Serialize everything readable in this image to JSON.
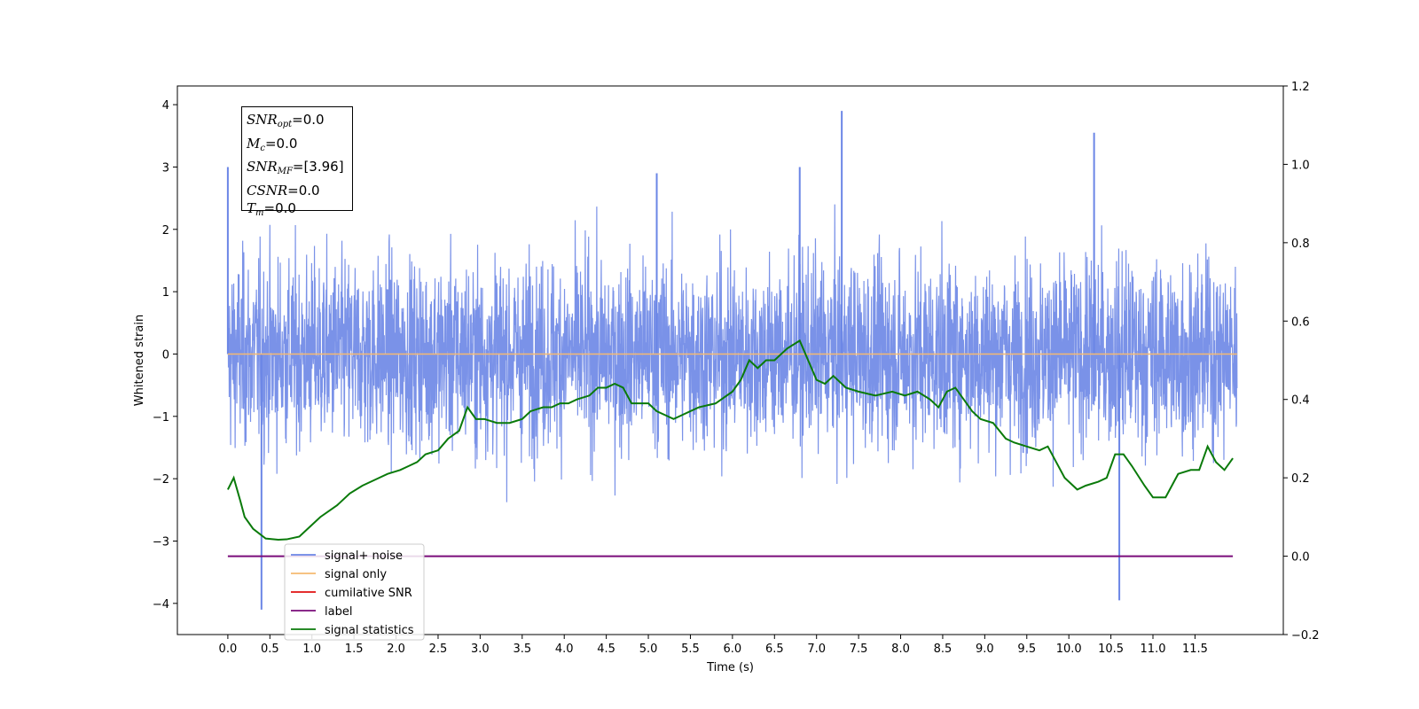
{
  "chart_data": {
    "type": "line",
    "xlabel": "Time (s)",
    "ylabel": "Whitened strain",
    "xlim": [
      -0.6,
      12.55
    ],
    "ylim": [
      -4.5,
      4.3
    ],
    "y2lim": [
      -0.2,
      1.2
    ],
    "x_ticks": [
      "0.0",
      "0.5",
      "1.0",
      "1.5",
      "2.0",
      "2.5",
      "3.0",
      "3.5",
      "4.0",
      "4.5",
      "5.0",
      "5.5",
      "6.0",
      "6.5",
      "7.0",
      "7.5",
      "8.0",
      "8.5",
      "9.0",
      "9.5",
      "10.0",
      "10.5",
      "11.0",
      "11.5"
    ],
    "y_ticks": [
      "4",
      "3",
      "2",
      "1",
      "0",
      "−1",
      "−2",
      "−3",
      "−4"
    ],
    "y2_ticks": [
      "1.2",
      "1.0",
      "0.8",
      "0.6",
      "0.4",
      "0.2",
      "0.0",
      "−0.2"
    ],
    "legend_position": "lower-left",
    "series": [
      {
        "name": "signal+ noise",
        "color": "#6b86e6",
        "axis": "left",
        "x_range": [
          0,
          12.0
        ],
        "mean": 0.0,
        "typical_min": -1.6,
        "typical_max": 1.6,
        "peaks": [
          [
            0.0,
            3.0
          ],
          [
            0.4,
            -4.1
          ],
          [
            7.3,
            3.9
          ],
          [
            10.3,
            3.55
          ],
          [
            10.6,
            -3.95
          ],
          [
            6.8,
            3.0
          ],
          [
            5.1,
            2.9
          ]
        ]
      },
      {
        "name": "signal only",
        "color": "#f5b971",
        "axis": "left",
        "x": [
          0,
          12.0
        ],
        "y": [
          0,
          0
        ]
      },
      {
        "name": "cumilative SNR",
        "color": "#e01010",
        "axis": "right",
        "x": [],
        "y": []
      },
      {
        "name": "label",
        "color": "#7a0c7a",
        "axis": "right",
        "x": [
          0,
          11.95
        ],
        "y": [
          0.0,
          0.0
        ]
      },
      {
        "name": "signal statistics",
        "color": "#0a7a0a",
        "axis": "right",
        "x": [
          0.0,
          0.07,
          0.15,
          0.2,
          0.3,
          0.45,
          0.6,
          0.7,
          0.85,
          0.95,
          1.1,
          1.3,
          1.45,
          1.6,
          1.8,
          1.9,
          2.05,
          2.15,
          2.25,
          2.35,
          2.5,
          2.62,
          2.75,
          2.85,
          2.95,
          3.05,
          3.2,
          3.35,
          3.5,
          3.6,
          3.75,
          3.85,
          3.95,
          4.05,
          4.15,
          4.3,
          4.4,
          4.5,
          4.6,
          4.7,
          4.8,
          5.0,
          5.1,
          5.2,
          5.3,
          5.4,
          5.6,
          5.8,
          6.0,
          6.1,
          6.2,
          6.3,
          6.4,
          6.5,
          6.65,
          6.8,
          6.9,
          7.0,
          7.1,
          7.2,
          7.35,
          7.5,
          7.7,
          7.9,
          8.05,
          8.2,
          8.35,
          8.45,
          8.55,
          8.65,
          8.75,
          8.85,
          8.95,
          9.1,
          9.25,
          9.35,
          9.5,
          9.65,
          9.75,
          9.85,
          9.95,
          10.1,
          10.2,
          10.35,
          10.45,
          10.55,
          10.65,
          10.75,
          10.9,
          11.0,
          11.15,
          11.3,
          11.45,
          11.55,
          11.65,
          11.75,
          11.85,
          11.95
        ],
        "y": [
          0.17,
          0.2,
          0.14,
          0.1,
          0.07,
          0.045,
          0.042,
          0.043,
          0.05,
          0.07,
          0.1,
          0.13,
          0.16,
          0.18,
          0.2,
          0.21,
          0.22,
          0.23,
          0.24,
          0.26,
          0.27,
          0.3,
          0.32,
          0.38,
          0.35,
          0.35,
          0.34,
          0.34,
          0.35,
          0.37,
          0.38,
          0.38,
          0.39,
          0.39,
          0.4,
          0.41,
          0.43,
          0.43,
          0.44,
          0.43,
          0.39,
          0.39,
          0.37,
          0.36,
          0.35,
          0.36,
          0.38,
          0.39,
          0.42,
          0.45,
          0.5,
          0.48,
          0.5,
          0.5,
          0.53,
          0.55,
          0.5,
          0.45,
          0.44,
          0.46,
          0.43,
          0.42,
          0.41,
          0.42,
          0.41,
          0.42,
          0.4,
          0.38,
          0.42,
          0.43,
          0.4,
          0.37,
          0.35,
          0.34,
          0.3,
          0.29,
          0.28,
          0.27,
          0.28,
          0.24,
          0.2,
          0.17,
          0.18,
          0.19,
          0.2,
          0.26,
          0.26,
          0.23,
          0.18,
          0.15,
          0.15,
          0.21,
          0.22,
          0.22,
          0.28,
          0.24,
          0.22,
          0.25
        ]
      }
    ]
  },
  "info_box": {
    "lines": [
      {
        "sym": "SNR",
        "sub": "opt",
        "rest": "=0.0"
      },
      {
        "sym": "M",
        "sub": "c",
        "rest": "=0.0"
      },
      {
        "sym": "SNR",
        "sub": "MF",
        "rest": "=[3.96]"
      },
      {
        "sym": "CSNR",
        "sub": "",
        "rest": "=0.0"
      },
      {
        "sym": "T",
        "sub": "m",
        "rest": "=0.0"
      }
    ]
  }
}
